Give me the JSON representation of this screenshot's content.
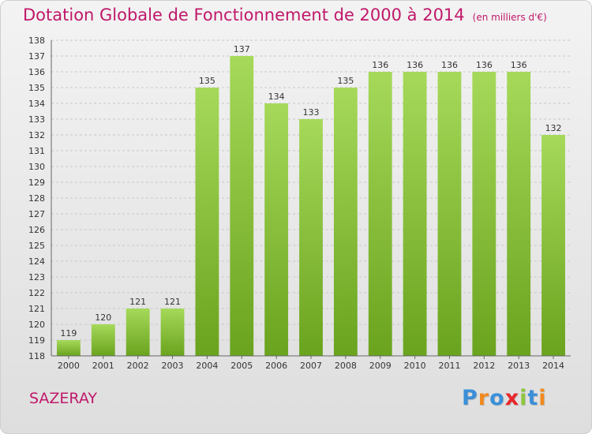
{
  "title": "Dotation Globale de Fonctionnement de 2000 à 2014",
  "subtitle": "(en milliers d'€)",
  "commune": "SAZERAY",
  "logo": {
    "letters": [
      "P",
      "r",
      "o",
      "x",
      "i",
      "t",
      "i"
    ],
    "colors": [
      "#3a8fd8",
      "#f08a1e",
      "#3a8fd8",
      "#e8262b",
      "#8cc63e",
      "#3a8fd8",
      "#f08a1e"
    ]
  },
  "colors": {
    "bar_top": "#a6d95a",
    "bar_bottom": "#6aa31e",
    "grid": "#c8c8c8",
    "title": "#c0186a"
  },
  "chart_data": {
    "type": "bar",
    "title": "Dotation Globale de Fonctionnement de 2000 à 2014",
    "subtitle": "(en milliers d'€)",
    "categories": [
      "2000",
      "2001",
      "2002",
      "2003",
      "2004",
      "2005",
      "2006",
      "2007",
      "2008",
      "2009",
      "2010",
      "2011",
      "2012",
      "2013",
      "2014"
    ],
    "values": [
      119,
      120,
      121,
      121,
      135,
      137,
      134,
      133,
      135,
      136,
      136,
      136,
      136,
      136,
      132
    ],
    "ylim": [
      118,
      138
    ],
    "yticks": [
      118,
      119,
      120,
      121,
      122,
      123,
      124,
      125,
      126,
      127,
      128,
      129,
      130,
      131,
      132,
      133,
      134,
      135,
      136,
      137,
      138
    ],
    "grid": true,
    "xlabel": "",
    "ylabel": ""
  }
}
